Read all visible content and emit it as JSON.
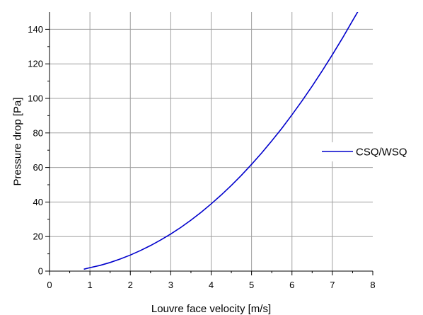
{
  "chart_data": {
    "type": "line",
    "xlabel": "Louvre face velocity [m/s]",
    "ylabel": "Pressure drop [Pa]",
    "xlim": [
      0,
      8
    ],
    "ylim": [
      0,
      150
    ],
    "xticks": [
      0,
      1,
      2,
      3,
      4,
      5,
      6,
      7,
      8
    ],
    "yticks": [
      0,
      20,
      40,
      60,
      80,
      100,
      120,
      140
    ],
    "grid": true,
    "legend_position": "right",
    "series": [
      {
        "name": "CSQ/WSQ",
        "color": "#0000cc",
        "x": [
          0.85,
          1.0,
          1.25,
          1.5,
          1.75,
          2.0,
          2.25,
          2.5,
          2.75,
          3.0,
          3.25,
          3.5,
          3.75,
          4.0,
          4.25,
          4.5,
          4.75,
          5.0,
          5.25,
          5.5,
          5.75,
          6.0,
          6.25,
          6.5,
          6.75,
          7.0,
          7.25,
          7.5,
          7.65
        ],
        "y": [
          1.1,
          2.0,
          3.3,
          5.0,
          7.0,
          9.3,
          11.9,
          14.8,
          18.0,
          21.5,
          25.3,
          29.5,
          34.0,
          38.9,
          44.1,
          49.6,
          55.5,
          61.8,
          68.4,
          75.4,
          82.7,
          90.5,
          98.6,
          107.1,
          116.0,
          125.3,
          134.9,
          145.0,
          151.0
        ]
      }
    ]
  }
}
